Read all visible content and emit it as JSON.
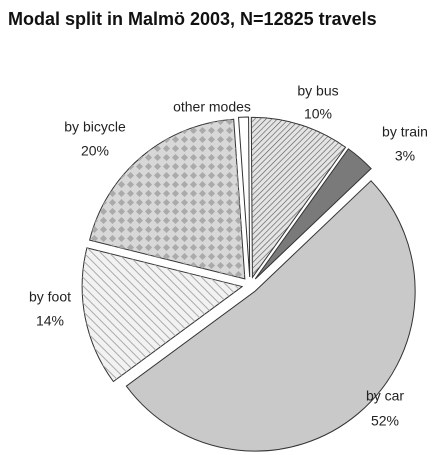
{
  "chart_data": {
    "type": "pie",
    "title": "Modal split in Malmö 2003, N=12825 travels",
    "categories": [
      "other modes",
      "by bus",
      "by train",
      "by car",
      "by foot",
      "by bicycle"
    ],
    "values": [
      1,
      10,
      3,
      52,
      14,
      20
    ],
    "value_labels": [
      "1%",
      "10%",
      "3%",
      "52%",
      "14%",
      "20%"
    ],
    "colors": [
      "#ffffff",
      "#e4e4e4",
      "#7a7a7a",
      "#c9c9c9",
      "#f2f2f2",
      "#d8d8d8"
    ]
  }
}
